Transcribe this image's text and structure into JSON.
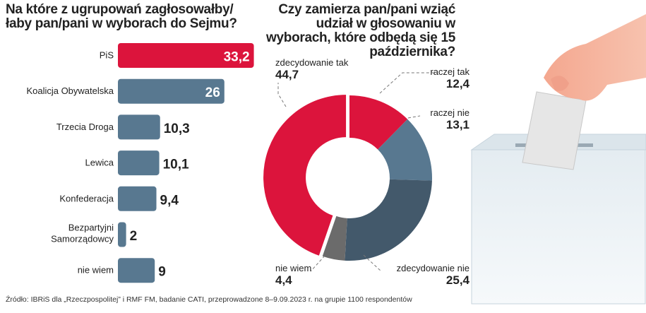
{
  "chart_data": [
    {
      "type": "bar",
      "orientation": "horizontal",
      "title": "Na które z ugrupowań zagłosowałby/łaby pan/pani w wyborach do Sejmu?",
      "categories": [
        "PiS",
        "Koalicja Obywatelska",
        "Trzecia Droga",
        "Lewica",
        "Konfederacja",
        "Bezpartyjni Samorządowcy",
        "nie wiem"
      ],
      "values": [
        33.2,
        26,
        10.3,
        10.1,
        9.4,
        2,
        9
      ],
      "value_labels": [
        "33,2",
        "26",
        "10,3",
        "10,1",
        "9,4",
        "2",
        "9"
      ],
      "colors": [
        "#dc143c",
        "#587890",
        "#587890",
        "#587890",
        "#587890",
        "#587890",
        "#587890"
      ],
      "grid": false
    },
    {
      "type": "pie",
      "donut": true,
      "title": "Czy zamierza pan/pani wziąć udział w głosowaniu w wyborach, które odbędą się 15 października?",
      "categories": [
        "raczej tak",
        "raczej nie",
        "zdecydowanie nie",
        "nie wiem",
        "zdecydowanie tak"
      ],
      "values": [
        12.4,
        13.1,
        25.4,
        4.4,
        44.7
      ],
      "value_labels": [
        "12,4",
        "13,1",
        "25,4",
        "4,4",
        "44,7"
      ],
      "colors": [
        "#dc143c",
        "#587890",
        "#43596b",
        "#6b6b6b",
        "#dc143c"
      ]
    }
  ],
  "source": "Źródło: IBRiS dla „Rzeczpospolitej” i RMF FM, badanie CATI, przeprowadzone 8–9.09.2023 r. na grupie 1100 respondentów"
}
